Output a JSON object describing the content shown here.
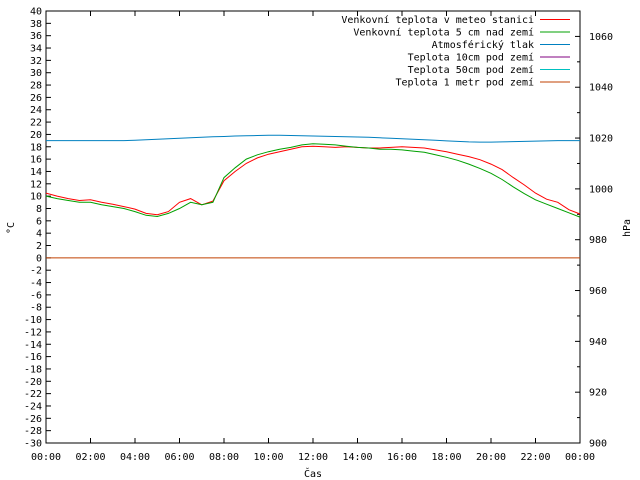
{
  "chart_data": {
    "type": "line",
    "xlabel": "Čas",
    "ylabel_left": "°C",
    "ylabel_right": "hPa",
    "ylim_left": [
      -30,
      40
    ],
    "ylim_right": [
      900,
      1070
    ],
    "x_ticks": [
      "00:00",
      "02:00",
      "04:00",
      "06:00",
      "08:00",
      "10:00",
      "12:00",
      "14:00",
      "16:00",
      "18:00",
      "20:00",
      "22:00",
      "00:00"
    ],
    "y_ticks_left": [
      "40",
      "38",
      "36",
      "34",
      "32",
      "30",
      "28",
      "26",
      "24",
      "22",
      "20",
      "18",
      "16",
      "14",
      "12",
      "10",
      "8",
      "6",
      "4",
      "2",
      "0",
      "-2",
      "-4",
      "-6",
      "-8",
      "-10",
      "-12",
      "-14",
      "-16",
      "-18",
      "-20",
      "-22",
      "-24",
      "-26",
      "-28",
      "-30"
    ],
    "y_ticks_right": [
      "1060",
      "1040",
      "1020",
      "1000",
      "980",
      "960",
      "940",
      "920",
      "900"
    ],
    "grid": false,
    "legend_position": "top-right",
    "x_hours": [
      0,
      0.5,
      1,
      1.5,
      2,
      2.5,
      3,
      3.5,
      4,
      4.5,
      5,
      5.5,
      6,
      6.5,
      7,
      7.5,
      8,
      8.5,
      9,
      9.5,
      10,
      10.5,
      11,
      11.5,
      12,
      12.5,
      13,
      13.5,
      14,
      14.5,
      15,
      15.5,
      16,
      16.5,
      17,
      17.5,
      18,
      18.5,
      19,
      19.5,
      20,
      20.5,
      21,
      21.5,
      22,
      22.5,
      23,
      23.5,
      24
    ],
    "series": [
      {
        "name": "Venkovní teplota v meteo stanici",
        "color": "#ff0000",
        "axis": "left",
        "values": [
          10.5,
          10.0,
          9.6,
          9.3,
          9.4,
          9.0,
          8.7,
          8.3,
          7.9,
          7.2,
          7.0,
          7.5,
          9.0,
          9.6,
          8.6,
          9.2,
          12.5,
          14.0,
          15.3,
          16.2,
          16.8,
          17.2,
          17.6,
          18.0,
          18.1,
          18.0,
          17.9,
          18.0,
          17.9,
          17.8,
          17.8,
          17.9,
          18.0,
          17.9,
          17.8,
          17.5,
          17.2,
          16.8,
          16.4,
          15.9,
          15.2,
          14.3,
          13.0,
          11.8,
          10.5,
          9.5,
          9.0,
          7.8,
          7.1
        ]
      },
      {
        "name": "Venkovní teplota 5 cm nad zemí",
        "color": "#00a000",
        "axis": "left",
        "values": [
          10.0,
          9.6,
          9.3,
          9.0,
          9.0,
          8.6,
          8.3,
          8.0,
          7.5,
          6.9,
          6.7,
          7.2,
          8.0,
          9.0,
          8.6,
          9.0,
          13.0,
          14.6,
          16.0,
          16.7,
          17.2,
          17.6,
          17.9,
          18.3,
          18.5,
          18.4,
          18.3,
          18.1,
          17.9,
          17.8,
          17.6,
          17.6,
          17.5,
          17.3,
          17.1,
          16.7,
          16.3,
          15.8,
          15.2,
          14.5,
          13.7,
          12.7,
          11.5,
          10.4,
          9.4,
          8.7,
          8.0,
          7.3,
          6.6
        ]
      },
      {
        "name": "Atmosférický tlak",
        "color": "#0080c0",
        "axis": "right",
        "values": [
          1019.0,
          1019.0,
          1019.0,
          1019.0,
          1019.0,
          1019.0,
          1019.0,
          1019.0,
          1019.1,
          1019.3,
          1019.5,
          1019.7,
          1019.9,
          1020.1,
          1020.3,
          1020.5,
          1020.6,
          1020.8,
          1020.9,
          1021.0,
          1021.1,
          1021.1,
          1021.0,
          1020.9,
          1020.8,
          1020.7,
          1020.6,
          1020.5,
          1020.4,
          1020.3,
          1020.1,
          1019.9,
          1019.7,
          1019.5,
          1019.3,
          1019.1,
          1018.9,
          1018.7,
          1018.5,
          1018.4,
          1018.4,
          1018.5,
          1018.6,
          1018.7,
          1018.8,
          1018.9,
          1019.0,
          1019.0,
          1019.0
        ]
      },
      {
        "name": "Teplota 10cm pod zemí",
        "color": "#800080",
        "axis": "left",
        "values": []
      },
      {
        "name": "Teplota 50cm pod zemí",
        "color": "#00c0c0",
        "axis": "left",
        "values": []
      },
      {
        "name": "Teplota 1 metr pod zemí",
        "color": "#c04000",
        "axis": "left",
        "values": [
          0,
          0,
          0,
          0,
          0,
          0,
          0,
          0,
          0,
          0,
          0,
          0,
          0,
          0,
          0,
          0,
          0,
          0,
          0,
          0,
          0,
          0,
          0,
          0,
          0,
          0,
          0,
          0,
          0,
          0,
          0,
          0,
          0,
          0,
          0,
          0,
          0,
          0,
          0,
          0,
          0,
          0,
          0,
          0,
          0,
          0,
          0,
          0,
          0
        ]
      }
    ]
  }
}
